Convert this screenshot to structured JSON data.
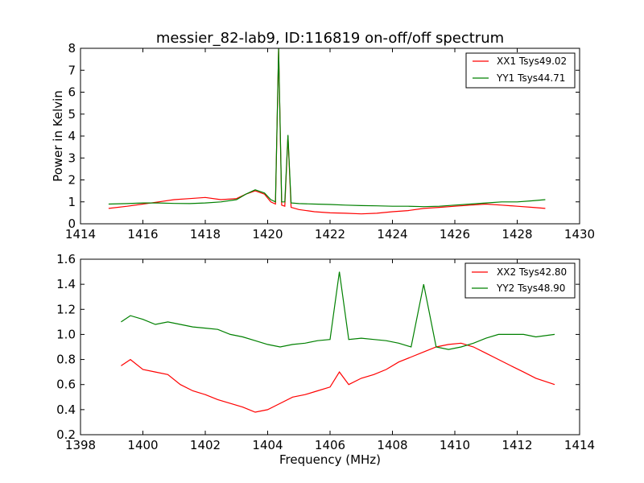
{
  "chart_data": [
    {
      "type": "line",
      "title": "messier_82-lab9, ID:116819 on-off/off spectrum",
      "xlabel": "",
      "ylabel": "Power in Kelvin",
      "xlim": [
        1414,
        1430
      ],
      "ylim": [
        0,
        8
      ],
      "xticks": [
        "1414",
        "1416",
        "1418",
        "1420",
        "1422",
        "1424",
        "1426",
        "1428",
        "1430"
      ],
      "yticks": [
        "0",
        "1",
        "2",
        "3",
        "4",
        "5",
        "6",
        "7",
        "8"
      ],
      "legend": "top-right",
      "grid": false,
      "series": [
        {
          "name": "XX1 Tsys49.02",
          "color": "#ff0000",
          "x": [
            1414.9,
            1415.5,
            1416.0,
            1416.5,
            1417.0,
            1417.5,
            1418.0,
            1418.5,
            1419.0,
            1419.3,
            1419.6,
            1419.9,
            1420.1,
            1420.25,
            1420.35,
            1420.45,
            1420.55,
            1420.65,
            1420.75,
            1421.0,
            1421.5,
            1422.0,
            1422.5,
            1423.0,
            1423.5,
            1424.0,
            1424.5,
            1425.0,
            1425.5,
            1426.0,
            1426.5,
            1427.0,
            1427.5,
            1428.0,
            1428.5,
            1428.9
          ],
          "y": [
            0.7,
            0.8,
            0.9,
            1.0,
            1.1,
            1.15,
            1.2,
            1.1,
            1.15,
            1.35,
            1.5,
            1.35,
            1.0,
            0.9,
            8.0,
            0.85,
            0.8,
            4.0,
            0.75,
            0.65,
            0.55,
            0.5,
            0.48,
            0.45,
            0.48,
            0.55,
            0.6,
            0.7,
            0.75,
            0.8,
            0.85,
            0.9,
            0.85,
            0.8,
            0.75,
            0.7
          ]
        },
        {
          "name": "YY1 Tsys44.71",
          "color": "#008000",
          "x": [
            1414.9,
            1415.5,
            1416.0,
            1416.5,
            1417.0,
            1417.5,
            1418.0,
            1418.5,
            1419.0,
            1419.3,
            1419.6,
            1419.9,
            1420.1,
            1420.25,
            1420.35,
            1420.45,
            1420.55,
            1420.65,
            1420.75,
            1421.0,
            1421.5,
            1422.0,
            1422.5,
            1423.0,
            1423.5,
            1424.0,
            1424.5,
            1425.0,
            1425.5,
            1426.0,
            1426.5,
            1427.0,
            1427.5,
            1428.0,
            1428.5,
            1428.9
          ],
          "y": [
            0.9,
            0.92,
            0.95,
            0.95,
            0.93,
            0.92,
            0.95,
            1.0,
            1.1,
            1.35,
            1.55,
            1.4,
            1.1,
            1.0,
            8.0,
            1.0,
            1.0,
            4.05,
            0.95,
            0.92,
            0.9,
            0.88,
            0.85,
            0.83,
            0.82,
            0.8,
            0.8,
            0.78,
            0.8,
            0.85,
            0.9,
            0.95,
            1.0,
            1.0,
            1.05,
            1.1
          ]
        }
      ]
    },
    {
      "type": "line",
      "title": "",
      "xlabel": "Frequency (MHz)",
      "ylabel": "",
      "xlim": [
        1398,
        1414
      ],
      "ylim": [
        0.2,
        1.6
      ],
      "xticks": [
        "1398",
        "1400",
        "1402",
        "1404",
        "1406",
        "1408",
        "1410",
        "1412",
        "1414"
      ],
      "yticks": [
        "0.2",
        "0.4",
        "0.6",
        "0.8",
        "1.0",
        "1.2",
        "1.4",
        "1.6"
      ],
      "legend": "top-right",
      "grid": false,
      "series": [
        {
          "name": "XX2 Tsys42.80",
          "color": "#ff0000",
          "x": [
            1399.3,
            1399.6,
            1400.0,
            1400.4,
            1400.8,
            1401.2,
            1401.6,
            1402.0,
            1402.4,
            1402.8,
            1403.2,
            1403.6,
            1404.0,
            1404.4,
            1404.8,
            1405.2,
            1405.6,
            1406.0,
            1406.3,
            1406.6,
            1407.0,
            1407.4,
            1407.8,
            1408.2,
            1408.6,
            1409.0,
            1409.4,
            1409.8,
            1410.2,
            1410.6,
            1411.0,
            1411.4,
            1411.8,
            1412.2,
            1412.6,
            1413.2
          ],
          "y": [
            0.75,
            0.8,
            0.72,
            0.7,
            0.68,
            0.6,
            0.55,
            0.52,
            0.48,
            0.45,
            0.42,
            0.38,
            0.4,
            0.45,
            0.5,
            0.52,
            0.55,
            0.58,
            0.7,
            0.6,
            0.65,
            0.68,
            0.72,
            0.78,
            0.82,
            0.86,
            0.9,
            0.92,
            0.93,
            0.9,
            0.85,
            0.8,
            0.75,
            0.7,
            0.65,
            0.6
          ]
        },
        {
          "name": "YY2 Tsys48.90",
          "color": "#008000",
          "x": [
            1399.3,
            1399.6,
            1400.0,
            1400.4,
            1400.8,
            1401.2,
            1401.6,
            1402.0,
            1402.4,
            1402.8,
            1403.2,
            1403.6,
            1404.0,
            1404.4,
            1404.8,
            1405.2,
            1405.6,
            1406.0,
            1406.3,
            1406.6,
            1407.0,
            1407.4,
            1407.8,
            1408.2,
            1408.6,
            1409.0,
            1409.4,
            1409.8,
            1410.2,
            1410.6,
            1411.0,
            1411.4,
            1411.8,
            1412.2,
            1412.6,
            1413.2
          ],
          "y": [
            1.1,
            1.15,
            1.12,
            1.08,
            1.1,
            1.08,
            1.06,
            1.05,
            1.04,
            1.0,
            0.98,
            0.95,
            0.92,
            0.9,
            0.92,
            0.93,
            0.95,
            0.96,
            1.5,
            0.96,
            0.97,
            0.96,
            0.95,
            0.93,
            0.9,
            1.4,
            0.9,
            0.88,
            0.9,
            0.93,
            0.97,
            1.0,
            1.0,
            1.0,
            0.98,
            1.0
          ]
        }
      ]
    }
  ]
}
